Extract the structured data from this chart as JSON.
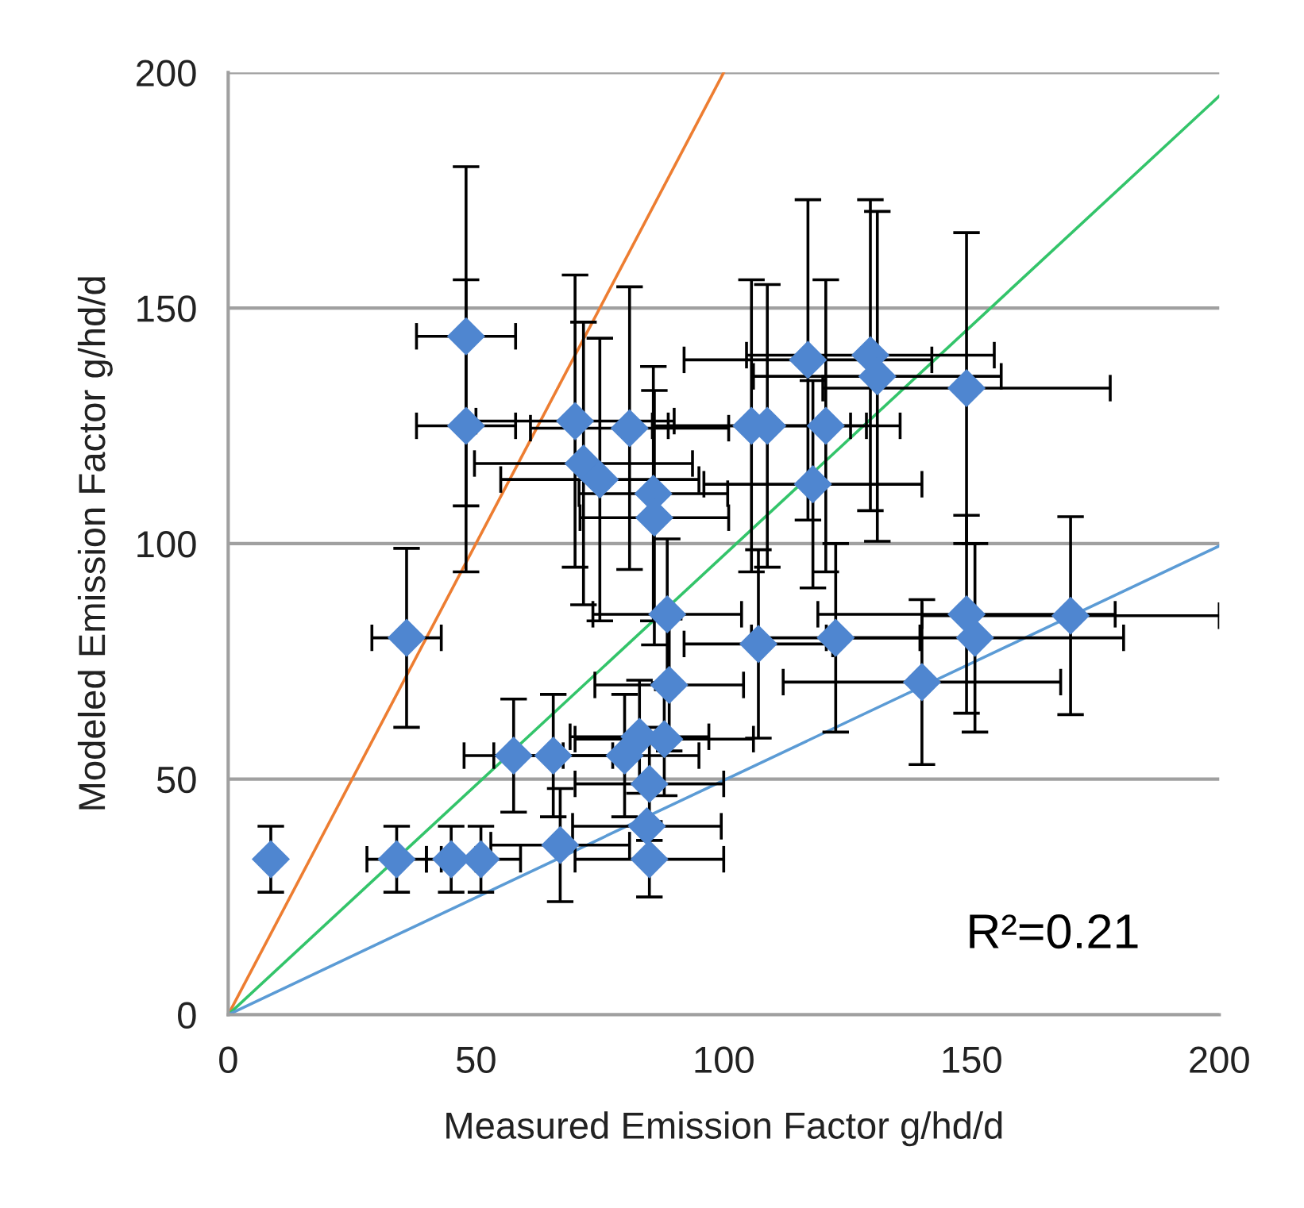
{
  "chart_data": {
    "type": "scatter",
    "xlabel": "Measured Emission Factor g/hd/d",
    "ylabel": "Modeled Emission Factor g/hd/d",
    "xlim": [
      0,
      200
    ],
    "ylim": [
      0,
      200
    ],
    "xticks": [
      0,
      50,
      100,
      150,
      200
    ],
    "yticks": [
      0,
      50,
      100,
      150,
      200
    ],
    "grid": "y",
    "legend": false,
    "annotations": [
      "R²=0.21"
    ],
    "series": [
      {
        "color": "#4f86d0",
        "marker": "diamond",
        "x": [
          48,
          48,
          36,
          8.6,
          34,
          45,
          51,
          67,
          57.6,
          65.6,
          80,
          83,
          88,
          85,
          84.5,
          85,
          89,
          88.6,
          70,
          81,
          71.7,
          75,
          85.8,
          86,
          117,
          129.6,
          131,
          149,
          105.6,
          108.8,
          120.6,
          118,
          107,
          122.6,
          140,
          149,
          150.7,
          170
        ],
        "values": [
          144,
          125,
          80,
          33,
          33,
          33,
          33,
          36,
          55,
          55,
          55,
          59,
          58.5,
          49,
          40,
          33,
          70,
          85,
          126,
          124.5,
          117,
          113.6,
          110.6,
          105.5,
          139,
          140,
          135.5,
          133,
          125,
          125,
          125,
          112.6,
          78.7,
          80,
          70.6,
          85,
          80,
          84.7
        ],
        "errors": [
          36,
          31,
          19,
          7,
          7,
          7,
          7,
          12,
          12,
          13,
          13,
          12,
          12,
          12,
          null,
          8,
          14,
          16,
          31,
          30,
          30,
          30,
          27,
          27,
          34,
          33,
          35,
          33,
          31,
          30,
          31,
          22,
          20,
          20,
          17.5,
          21,
          20,
          21
        ],
        "xerrors": [
          10,
          10,
          7,
          null,
          6,
          5,
          8,
          14,
          10,
          12,
          15,
          14,
          18,
          15,
          15,
          15,
          15,
          15,
          20,
          20,
          22,
          20,
          15,
          15,
          25,
          25,
          25,
          29,
          20,
          20,
          15,
          22,
          15,
          17,
          28,
          30,
          30,
          30
        ]
      },
      {
        "type": "line",
        "color": "#ed7d31",
        "x": [
          0,
          100
        ],
        "values": [
          0,
          200
        ]
      },
      {
        "type": "line",
        "color": "#33c46a",
        "x": [
          0,
          200
        ],
        "values": [
          0,
          195
        ]
      },
      {
        "type": "line",
        "color": "#5b9bd5",
        "x": [
          0,
          200
        ],
        "values": [
          0,
          99.5
        ]
      }
    ]
  }
}
